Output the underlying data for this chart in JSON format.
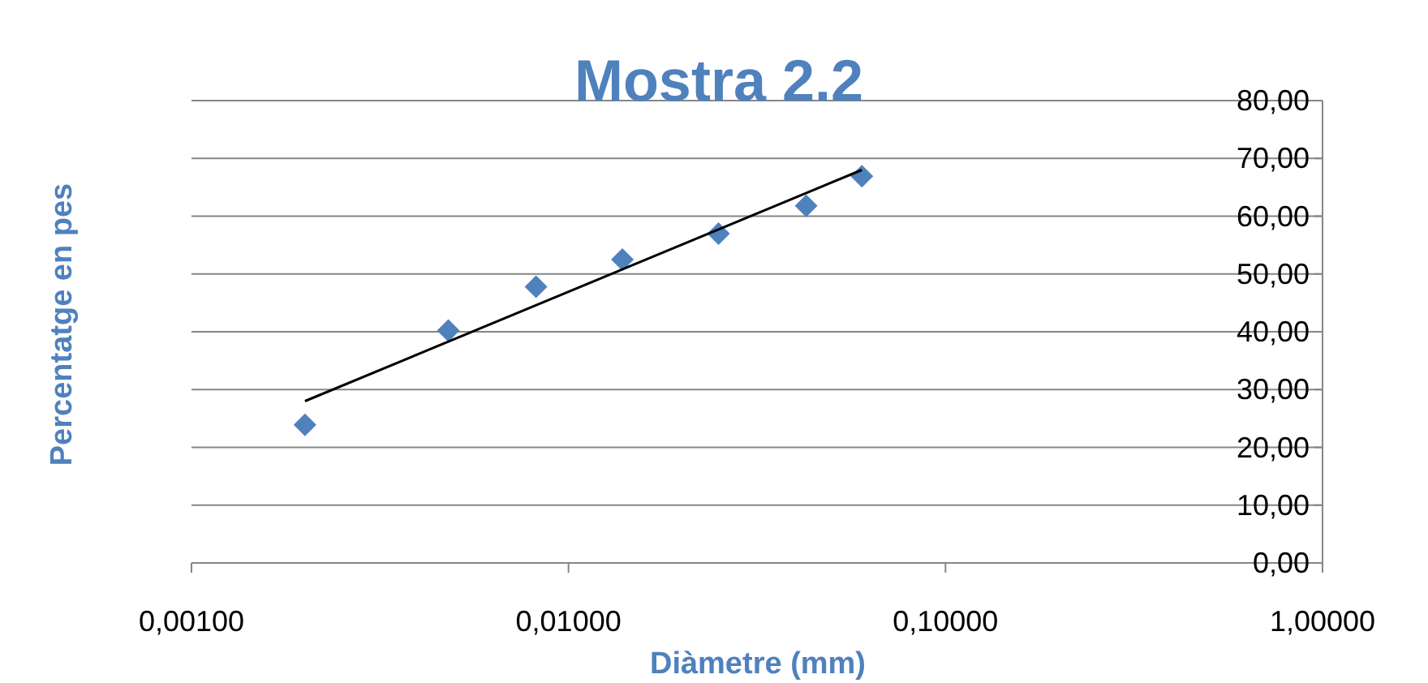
{
  "chart_data": {
    "type": "scatter",
    "title": "Mostra 2.2",
    "xlabel": "Diàmetre (mm)",
    "ylabel": "Percentatge en pes",
    "log": "x",
    "grid": "y",
    "marker": "diamond",
    "xlim": [
      0.001,
      1
    ],
    "xticks": [
      {
        "value": 0.001,
        "label": "0,00100"
      },
      {
        "value": 0.01,
        "label": "0,01000"
      },
      {
        "value": 0.1,
        "label": "0,10000"
      },
      {
        "value": 1,
        "label": "1,00000"
      }
    ],
    "ylim": [
      0,
      80
    ],
    "yticks": [
      {
        "value": 0,
        "label": "0,00"
      },
      {
        "value": 10,
        "label": "10,00"
      },
      {
        "value": 20,
        "label": "20,00"
      },
      {
        "value": 30,
        "label": "30,00"
      },
      {
        "value": 40,
        "label": "40,00"
      },
      {
        "value": 50,
        "label": "50,00"
      },
      {
        "value": 60,
        "label": "60,00"
      },
      {
        "value": 70,
        "label": "70,00"
      },
      {
        "value": 80,
        "label": "80,00"
      }
    ],
    "series": [
      {
        "color": "#4f81bd",
        "x": [
          0.002,
          0.0048,
          0.0082,
          0.0139,
          0.025,
          0.0427,
          0.06
        ],
        "values": [
          23.9,
          40.2,
          47.8,
          52.5,
          57.0,
          61.8,
          66.9
        ]
      },
      {
        "type": "line",
        "color": "#000000",
        "x": [
          0.002,
          0.06
        ],
        "values": [
          28,
          68
        ],
        "marker": "none"
      }
    ]
  }
}
